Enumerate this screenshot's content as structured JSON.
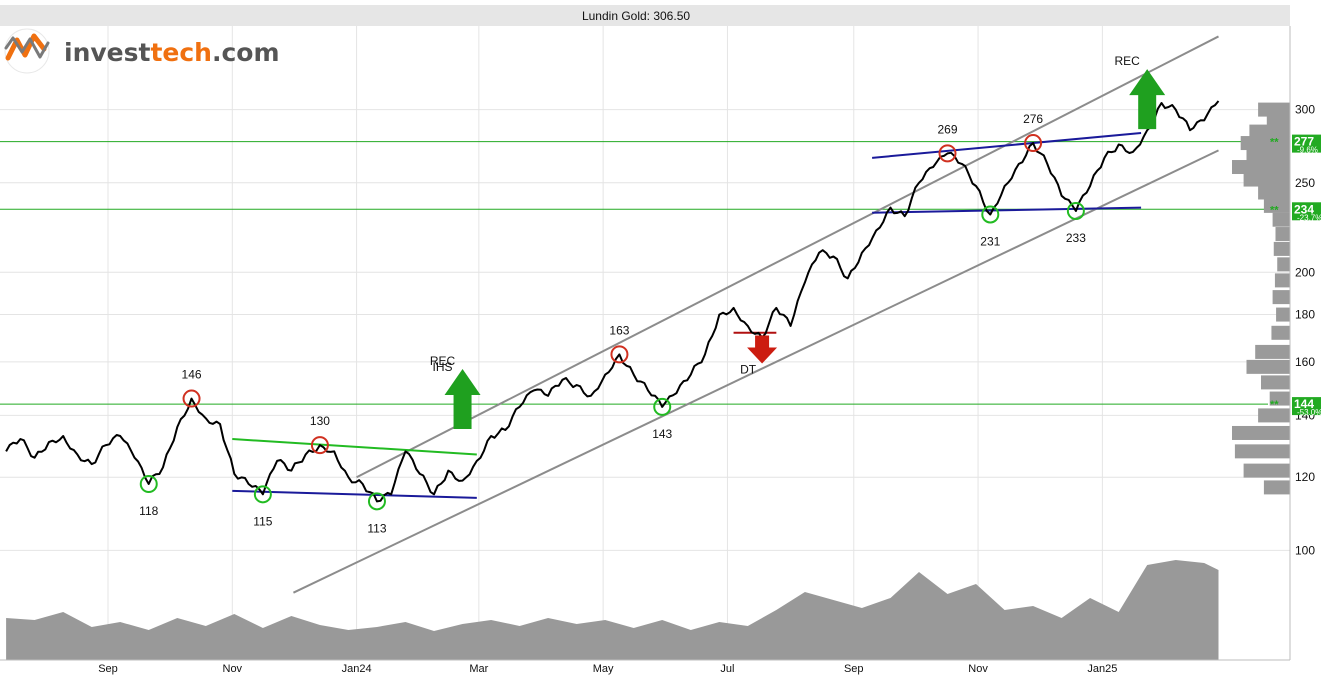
{
  "header": {
    "title": "Lundin Gold: 306.50"
  },
  "logo": {
    "brand_dark": "invest",
    "brand_accent": "tech",
    "brand_suffix": ".com"
  },
  "colors": {
    "price": "#000000",
    "channel": "#8c8c8c",
    "support_resistance": "#22aa22",
    "pattern_blue": "#1a1a9a",
    "pattern_green": "#22bb22",
    "circle_high": "#d03020",
    "circle_low": "#22bb22",
    "signal_buy": "#1fa01f",
    "signal_sell": "#cc1c10",
    "volume": "#999999",
    "volume_profile": "#9a9a9a",
    "grid": "#e4e4e4",
    "title_bar": "#e6e6e6"
  },
  "chart_data": {
    "type": "line",
    "title": "Lundin Gold: 306.50",
    "y_scale": "log",
    "ylim": [
      85,
      345
    ],
    "y_ticks": [
      100,
      120,
      140,
      160,
      180,
      200,
      250,
      300
    ],
    "x_ticks": [
      {
        "label": "Sep",
        "date": "2023-09-01"
      },
      {
        "label": "Nov",
        "date": "2023-11-01"
      },
      {
        "label": "Jan24",
        "date": "2024-01-01"
      },
      {
        "label": "Mar",
        "date": "2024-03-01"
      },
      {
        "label": "May",
        "date": "2024-05-01"
      },
      {
        "label": "Jul",
        "date": "2024-07-01"
      },
      {
        "label": "Sep",
        "date": "2024-09-01"
      },
      {
        "label": "Nov",
        "date": "2024-11-01"
      },
      {
        "label": "Jan25",
        "date": "2025-01-01"
      }
    ],
    "series": [
      {
        "type": "line",
        "points": [
          [
            "2023-07-13",
            128
          ],
          [
            "2023-07-20",
            132
          ],
          [
            "2023-07-27",
            126
          ],
          [
            "2023-08-03",
            131
          ],
          [
            "2023-08-10",
            133
          ],
          [
            "2023-08-17",
            127
          ],
          [
            "2023-08-24",
            124
          ],
          [
            "2023-08-31",
            130
          ],
          [
            "2023-09-07",
            133
          ],
          [
            "2023-09-14",
            126
          ],
          [
            "2023-09-21",
            118
          ],
          [
            "2023-09-28",
            123
          ],
          [
            "2023-10-05",
            136
          ],
          [
            "2023-10-12",
            146
          ],
          [
            "2023-10-19",
            139
          ],
          [
            "2023-10-26",
            137
          ],
          [
            "2023-11-02",
            121
          ],
          [
            "2023-11-09",
            118
          ],
          [
            "2023-11-16",
            115
          ],
          [
            "2023-11-23",
            125
          ],
          [
            "2023-11-30",
            122
          ],
          [
            "2023-12-07",
            127
          ],
          [
            "2023-12-14",
            130
          ],
          [
            "2023-12-21",
            128
          ],
          [
            "2023-12-28",
            120
          ],
          [
            "2024-01-04",
            118
          ],
          [
            "2024-01-11",
            113
          ],
          [
            "2024-01-18",
            115
          ],
          [
            "2024-01-25",
            128
          ],
          [
            "2024-02-01",
            121
          ],
          [
            "2024-02-08",
            115
          ],
          [
            "2024-02-15",
            122
          ],
          [
            "2024-02-22",
            119
          ],
          [
            "2024-02-29",
            125
          ],
          [
            "2024-03-07",
            133
          ],
          [
            "2024-03-14",
            135
          ],
          [
            "2024-03-21",
            143
          ],
          [
            "2024-03-28",
            149
          ],
          [
            "2024-04-04",
            147
          ],
          [
            "2024-04-11",
            153
          ],
          [
            "2024-04-18",
            151
          ],
          [
            "2024-04-25",
            147
          ],
          [
            "2024-05-02",
            155
          ],
          [
            "2024-05-09",
            163
          ],
          [
            "2024-05-16",
            155
          ],
          [
            "2024-05-23",
            149
          ],
          [
            "2024-05-30",
            143
          ],
          [
            "2024-06-06",
            148
          ],
          [
            "2024-06-13",
            155
          ],
          [
            "2024-06-20",
            163
          ],
          [
            "2024-06-27",
            180
          ],
          [
            "2024-07-04",
            183
          ],
          [
            "2024-07-11",
            175
          ],
          [
            "2024-07-18",
            170
          ],
          [
            "2024-07-25",
            183
          ],
          [
            "2024-08-01",
            175
          ],
          [
            "2024-08-08",
            195
          ],
          [
            "2024-08-15",
            210
          ],
          [
            "2024-08-22",
            208
          ],
          [
            "2024-08-29",
            197
          ],
          [
            "2024-09-05",
            210
          ],
          [
            "2024-09-12",
            222
          ],
          [
            "2024-09-19",
            235
          ],
          [
            "2024-09-26",
            230
          ],
          [
            "2024-10-03",
            250
          ],
          [
            "2024-10-10",
            260
          ],
          [
            "2024-10-17",
            269
          ],
          [
            "2024-10-24",
            262
          ],
          [
            "2024-10-31",
            248
          ],
          [
            "2024-11-07",
            231
          ],
          [
            "2024-11-14",
            248
          ],
          [
            "2024-11-21",
            262
          ],
          [
            "2024-11-28",
            276
          ],
          [
            "2024-12-05",
            262
          ],
          [
            "2024-12-12",
            242
          ],
          [
            "2024-12-19",
            233
          ],
          [
            "2024-12-26",
            248
          ],
          [
            "2025-01-02",
            266
          ],
          [
            "2025-01-09",
            275
          ],
          [
            "2025-01-16",
            270
          ],
          [
            "2025-01-23",
            285
          ],
          [
            "2025-01-30",
            305
          ],
          [
            "2025-02-06",
            300
          ],
          [
            "2025-02-13",
            285
          ],
          [
            "2025-02-20",
            292
          ],
          [
            "2025-02-27",
            306.5
          ]
        ]
      }
    ],
    "horizontal_levels": [
      {
        "value": 277,
        "label": "277",
        "pct": "-9.6%"
      },
      {
        "value": 234,
        "label": "234",
        "pct": "-23.7%"
      },
      {
        "value": 144,
        "label": "144",
        "pct": "-53.0%"
      }
    ],
    "trend_channel": {
      "lower": [
        [
          "2023-12-01",
          90
        ],
        [
          "2025-02-27",
          271
        ]
      ],
      "upper": [
        [
          "2024-01-01",
          120
        ],
        [
          "2025-02-27",
          360
        ]
      ]
    },
    "patterns": [
      {
        "type": "line",
        "role": "neckline",
        "start": [
          "2023-11-01",
          132
        ],
        "end": [
          "2024-02-29",
          127
        ]
      },
      {
        "type": "line",
        "role": "base",
        "start": [
          "2023-11-01",
          116
        ],
        "end": [
          "2024-02-29",
          114
        ]
      },
      {
        "type": "line",
        "role": "top",
        "start": [
          "2024-09-10",
          266
        ],
        "end": [
          "2025-01-20",
          283
        ]
      },
      {
        "type": "line",
        "role": "bottom",
        "start": [
          "2024-09-10",
          232
        ],
        "end": [
          "2025-01-20",
          235
        ]
      }
    ],
    "breakouts": [
      {
        "type": "line",
        "start": [
          "2024-07-04",
          172
        ],
        "end": [
          "2024-07-25",
          172
        ]
      }
    ],
    "circle_annotations": [
      {
        "date": "2023-09-21",
        "value": 118,
        "label": "118",
        "kind": "low"
      },
      {
        "date": "2023-10-12",
        "value": 146,
        "label": "146",
        "kind": "high"
      },
      {
        "date": "2023-11-16",
        "value": 115,
        "label": "115",
        "kind": "low"
      },
      {
        "date": "2023-12-14",
        "value": 130,
        "label": "130",
        "kind": "high"
      },
      {
        "date": "2024-01-11",
        "value": 113,
        "label": "113",
        "kind": "low"
      },
      {
        "date": "2024-05-09",
        "value": 163,
        "label": "163",
        "kind": "high"
      },
      {
        "date": "2024-05-30",
        "value": 143,
        "label": "143",
        "kind": "low"
      },
      {
        "date": "2024-10-17",
        "value": 269,
        "label": "269",
        "kind": "high"
      },
      {
        "date": "2024-11-07",
        "value": 231,
        "label": "231",
        "kind": "low"
      },
      {
        "date": "2024-11-28",
        "value": 276,
        "label": "276",
        "kind": "high"
      },
      {
        "date": "2024-12-19",
        "value": 233,
        "label": "233",
        "kind": "low"
      }
    ],
    "signals": [
      {
        "date": "2024-02-22",
        "value": 135,
        "direction": "up",
        "labels": [
          "IHS",
          "REC"
        ]
      },
      {
        "date": "2024-07-18",
        "value": 170,
        "direction": "down",
        "labels": [
          "DT"
        ]
      },
      {
        "date": "2025-01-23",
        "value": 285,
        "direction": "up",
        "labels": [
          "REC"
        ]
      }
    ],
    "volume": [
      [
        "2023-07-13",
        0.42
      ],
      [
        "2023-07-27",
        0.4
      ],
      [
        "2023-08-10",
        0.48
      ],
      [
        "2023-08-24",
        0.33
      ],
      [
        "2023-09-07",
        0.38
      ],
      [
        "2023-09-21",
        0.3
      ],
      [
        "2023-10-05",
        0.42
      ],
      [
        "2023-10-19",
        0.34
      ],
      [
        "2023-11-02",
        0.46
      ],
      [
        "2023-11-16",
        0.32
      ],
      [
        "2023-11-30",
        0.44
      ],
      [
        "2023-12-14",
        0.35
      ],
      [
        "2023-12-28",
        0.3
      ],
      [
        "2024-01-11",
        0.33
      ],
      [
        "2024-01-25",
        0.38
      ],
      [
        "2024-02-08",
        0.29
      ],
      [
        "2024-02-22",
        0.36
      ],
      [
        "2024-03-07",
        0.4
      ],
      [
        "2024-03-21",
        0.34
      ],
      [
        "2024-04-04",
        0.42
      ],
      [
        "2024-04-18",
        0.36
      ],
      [
        "2024-05-02",
        0.4
      ],
      [
        "2024-05-16",
        0.32
      ],
      [
        "2024-05-30",
        0.4
      ],
      [
        "2024-06-13",
        0.3
      ],
      [
        "2024-06-27",
        0.38
      ],
      [
        "2024-07-11",
        0.34
      ],
      [
        "2024-07-25",
        0.5
      ],
      [
        "2024-08-08",
        0.68
      ],
      [
        "2024-08-22",
        0.6
      ],
      [
        "2024-09-05",
        0.52
      ],
      [
        "2024-09-19",
        0.62
      ],
      [
        "2024-10-03",
        0.88
      ],
      [
        "2024-10-17",
        0.66
      ],
      [
        "2024-10-31",
        0.76
      ],
      [
        "2024-11-14",
        0.5
      ],
      [
        "2024-11-28",
        0.54
      ],
      [
        "2024-12-12",
        0.42
      ],
      [
        "2024-12-26",
        0.62
      ],
      [
        "2025-01-09",
        0.48
      ],
      [
        "2025-01-23",
        0.95
      ],
      [
        "2025-02-06",
        1.0
      ],
      [
        "2025-02-20",
        0.97
      ],
      [
        "2025-02-27",
        0.9
      ]
    ],
    "volume_profile": [
      {
        "price": 300,
        "weight": 0.55
      },
      {
        "price": 292,
        "weight": 0.4
      },
      {
        "price": 284,
        "weight": 0.7
      },
      {
        "price": 276,
        "weight": 0.85
      },
      {
        "price": 268,
        "weight": 0.75
      },
      {
        "price": 260,
        "weight": 1.0
      },
      {
        "price": 252,
        "weight": 0.8
      },
      {
        "price": 244,
        "weight": 0.55
      },
      {
        "price": 236,
        "weight": 0.45
      },
      {
        "price": 228,
        "weight": 0.3
      },
      {
        "price": 220,
        "weight": 0.25
      },
      {
        "price": 212,
        "weight": 0.28
      },
      {
        "price": 204,
        "weight": 0.22
      },
      {
        "price": 196,
        "weight": 0.26
      },
      {
        "price": 188,
        "weight": 0.3
      },
      {
        "price": 180,
        "weight": 0.24
      },
      {
        "price": 172,
        "weight": 0.32
      },
      {
        "price": 164,
        "weight": 0.6
      },
      {
        "price": 158,
        "weight": 0.75
      },
      {
        "price": 152,
        "weight": 0.5
      },
      {
        "price": 146,
        "weight": 0.35
      },
      {
        "price": 140,
        "weight": 0.55
      },
      {
        "price": 134,
        "weight": 1.0
      },
      {
        "price": 128,
        "weight": 0.95
      },
      {
        "price": 122,
        "weight": 0.8
      },
      {
        "price": 117,
        "weight": 0.45
      }
    ]
  }
}
